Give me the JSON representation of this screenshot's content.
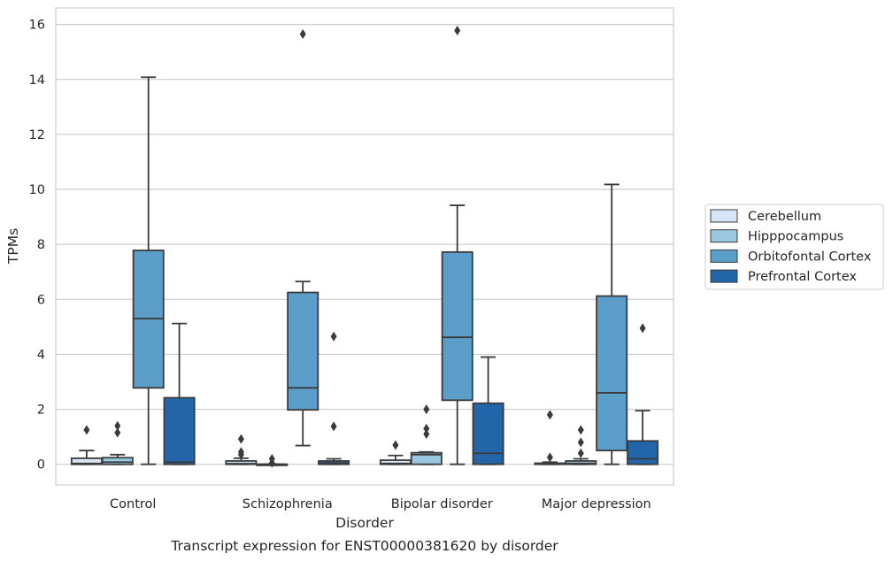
{
  "chart_data": {
    "type": "box",
    "title": "Transcript expression for ENST00000381620 by disorder",
    "xlabel": "Disorder",
    "ylabel": "TPMs",
    "ylim": [
      -0.75,
      16.6
    ],
    "yticks": [
      0,
      2,
      4,
      6,
      8,
      10,
      12,
      14,
      16
    ],
    "grid": true,
    "legend_position": "right",
    "categories": [
      "Control",
      "Schizophrenia",
      "Bipolar disorder",
      "Major depression"
    ],
    "series": [
      {
        "name": "Cerebellum",
        "color": "#d6e6f4",
        "boxes": [
          {
            "whislo": 0,
            "q1": 0,
            "med": 0.03,
            "q3": 0.22,
            "whishi": 0.5,
            "fliers": [
              1.25
            ]
          },
          {
            "whislo": 0,
            "q1": 0,
            "med": 0.02,
            "q3": 0.12,
            "whishi": 0.22,
            "fliers": [
              0.35,
              0.45,
              0.92
            ]
          },
          {
            "whislo": 0,
            "q1": 0,
            "med": 0.03,
            "q3": 0.15,
            "whishi": 0.32,
            "fliers": [
              0.7
            ]
          },
          {
            "whislo": 0,
            "q1": 0,
            "med": 0.01,
            "q3": 0.04,
            "whishi": 0.08,
            "fliers": [
              0.25,
              1.8
            ]
          }
        ]
      },
      {
        "name": "Hipppocampus",
        "color": "#9ac8e0",
        "boxes": [
          {
            "whislo": 0,
            "q1": 0,
            "med": 0.08,
            "q3": 0.24,
            "whishi": 0.35,
            "fliers": [
              1.15,
              1.4
            ]
          },
          {
            "whislo": 0,
            "q1": 0,
            "med": 0,
            "q3": 0,
            "whishi": 0,
            "fliers": [
              0.05,
              0.2
            ]
          },
          {
            "whislo": 0,
            "q1": 0,
            "med": 0.35,
            "q3": 0.42,
            "whishi": 0.45,
            "fliers": [
              1.1,
              1.3,
              2.0
            ]
          },
          {
            "whislo": 0,
            "q1": 0,
            "med": 0.03,
            "q3": 0.12,
            "whishi": 0.2,
            "fliers": [
              0.4,
              0.8,
              1.25
            ]
          }
        ]
      },
      {
        "name": "Orbitofontal Cortex",
        "color": "#5a9ec9",
        "boxes": [
          {
            "whislo": 0,
            "q1": 2.78,
            "med": 5.3,
            "q3": 7.78,
            "whishi": 14.08,
            "fliers": []
          },
          {
            "whislo": 0.68,
            "q1": 1.98,
            "med": 2.78,
            "q3": 6.25,
            "whishi": 6.65,
            "fliers": [
              15.65
            ]
          },
          {
            "whislo": 0,
            "q1": 2.33,
            "med": 4.62,
            "q3": 7.72,
            "whishi": 9.42,
            "fliers": [
              15.78
            ]
          },
          {
            "whislo": 0,
            "q1": 0.5,
            "med": 2.6,
            "q3": 6.12,
            "whishi": 10.18,
            "fliers": []
          }
        ]
      },
      {
        "name": "Prefrontal Cortex",
        "color": "#2265a8",
        "boxes": [
          {
            "whislo": 0,
            "q1": 0,
            "med": 0.08,
            "q3": 2.42,
            "whishi": 5.12,
            "fliers": []
          },
          {
            "whislo": 0,
            "q1": 0,
            "med": 0.04,
            "q3": 0.12,
            "whishi": 0.2,
            "fliers": [
              1.38,
              4.65
            ]
          },
          {
            "whislo": 0,
            "q1": 0,
            "med": 0.4,
            "q3": 2.22,
            "whishi": 3.9,
            "fliers": []
          },
          {
            "whislo": 0,
            "q1": 0,
            "med": 0.2,
            "q3": 0.85,
            "whishi": 1.95,
            "fliers": [
              4.95
            ]
          }
        ]
      }
    ]
  }
}
